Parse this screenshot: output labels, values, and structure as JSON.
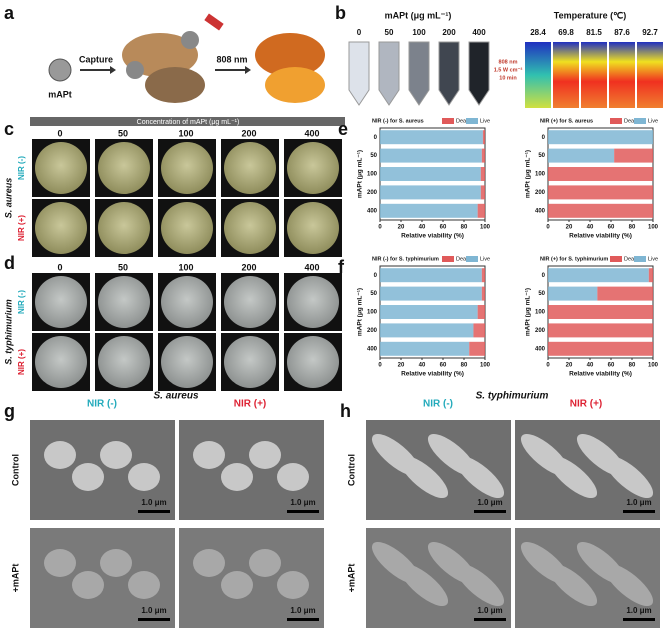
{
  "panel_a": {
    "label": "a",
    "particle": "mAPt",
    "step1": "Capture",
    "step2": "808 nm"
  },
  "panel_b": {
    "label": "b",
    "tube_title": "mAPt (μg mL⁻¹)",
    "concentrations": [
      0,
      50,
      100,
      200,
      400
    ],
    "thermal_title": "Temperature (℃)",
    "temperatures": [
      28.4,
      69.8,
      81.5,
      87.6,
      92.7
    ],
    "laser": [
      "808 nm",
      "1.5 W cm⁻²",
      "10 min"
    ]
  },
  "panel_c": {
    "label": "c",
    "header": "Concentration of mAPt (μg mL⁻¹)",
    "columns": [
      0,
      50,
      100,
      200,
      400
    ],
    "rows": [
      "NIR (-)",
      "NIR (+)"
    ],
    "species": "S. aureus"
  },
  "panel_d": {
    "label": "d",
    "columns": [
      0,
      50,
      100,
      200,
      400
    ],
    "rows": [
      "NIR (-)",
      "NIR (+)"
    ],
    "species": "S. typhimurium"
  },
  "panel_e": {
    "label": "e"
  },
  "panel_f": {
    "label": "f"
  },
  "chart_data": [
    {
      "type": "bar",
      "orientation": "horizontal",
      "title": "NIR (-) for S. aureus",
      "ylabel": "mAPt (μg mL⁻¹)",
      "xlabel": "Relative viability (%)",
      "categories": [
        0,
        50,
        100,
        200,
        400
      ],
      "series": [
        {
          "name": "Dead",
          "color": "#e05a5a",
          "values": [
            2,
            3,
            4,
            4,
            7
          ]
        },
        {
          "name": "Live",
          "color": "#7fb6d3",
          "values": [
            98,
            97,
            96,
            96,
            93
          ]
        }
      ],
      "xlim": [
        0,
        100
      ],
      "xticks": [
        0,
        20,
        40,
        60,
        80,
        100
      ]
    },
    {
      "type": "bar",
      "orientation": "horizontal",
      "title": "NIR (+) for S. aureus",
      "ylabel": "mAPt (μg mL⁻¹)",
      "xlabel": "Relative viability (%)",
      "categories": [
        0,
        50,
        100,
        200,
        400
      ],
      "series": [
        {
          "name": "Dead",
          "color": "#e05a5a",
          "values": [
            0,
            37,
            100,
            100,
            100
          ]
        },
        {
          "name": "Live",
          "color": "#7fb6d3",
          "values": [
            100,
            63,
            0,
            0,
            0
          ]
        }
      ],
      "xlim": [
        0,
        100
      ],
      "xticks": [
        0,
        20,
        40,
        60,
        80,
        100
      ]
    },
    {
      "type": "bar",
      "orientation": "horizontal",
      "title": "NIR (-) for S. typhimurium",
      "ylabel": "mAPt (μg mL⁻¹)",
      "xlabel": "Relative viability (%)",
      "categories": [
        0,
        50,
        100,
        200,
        400
      ],
      "series": [
        {
          "name": "Dead",
          "color": "#e05a5a",
          "values": [
            3,
            3,
            7,
            11,
            15
          ]
        },
        {
          "name": "Live",
          "color": "#7fb6d3",
          "values": [
            97,
            97,
            93,
            89,
            85
          ]
        }
      ],
      "xlim": [
        0,
        100
      ],
      "xticks": [
        0,
        20,
        40,
        60,
        80,
        100
      ]
    },
    {
      "type": "bar",
      "orientation": "horizontal",
      "title": "NIR (+) for S. typhimurium",
      "ylabel": "mAPt (μg mL⁻¹)",
      "xlabel": "Relative viability (%)",
      "categories": [
        0,
        50,
        100,
        200,
        400
      ],
      "series": [
        {
          "name": "Dead",
          "color": "#e05a5a",
          "values": [
            4,
            53,
            100,
            100,
            100
          ]
        },
        {
          "name": "Live",
          "color": "#7fb6d3",
          "values": [
            96,
            47,
            0,
            0,
            0
          ]
        }
      ],
      "xlim": [
        0,
        100
      ],
      "xticks": [
        0,
        20,
        40,
        60,
        80,
        100
      ]
    }
  ],
  "panel_g": {
    "label": "g",
    "species": "S. aureus",
    "columns": [
      "NIR (-)",
      "NIR (+)"
    ],
    "rows": [
      "Control",
      "+mAPt"
    ],
    "scale_bars": [
      "1.0 μm",
      "1.0 μm",
      "1.0 μm",
      "1.0 μm"
    ]
  },
  "panel_h": {
    "label": "h",
    "species": "S. typhimurium",
    "columns": [
      "NIR (-)",
      "NIR (+)"
    ],
    "rows": [
      "Control",
      "+mAPt"
    ],
    "scale_bars": [
      "1.0 μm",
      "1.0 μm",
      "1.0 μm",
      "1.0 μm"
    ]
  }
}
